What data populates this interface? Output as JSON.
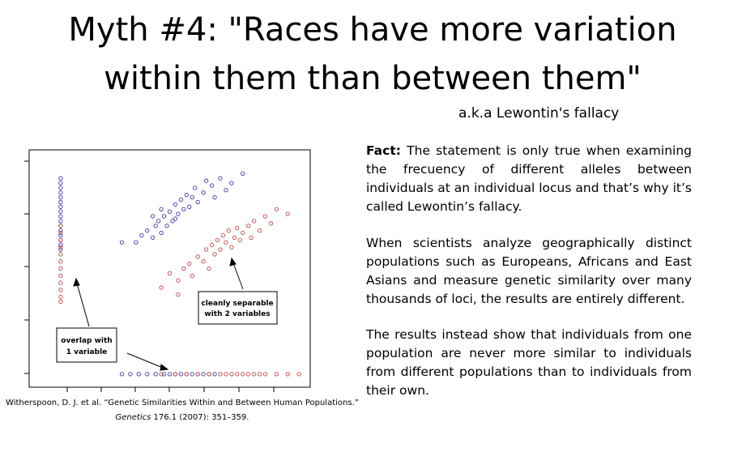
{
  "header": {
    "title_line1": "Myth #4: \"Races have more variation",
    "title_line2": "within them than between them\"",
    "subtitle": "a.k.a Lewontin's fallacy"
  },
  "chart_data": {
    "type": "scatter",
    "xlim": [
      0,
      100
    ],
    "ylim": [
      0,
      100
    ],
    "annotations": [
      {
        "line1": "overlap with",
        "line2": "1 variable"
      },
      {
        "line1": "cleanly separable",
        "line2": "with 2 variables"
      }
    ],
    "series": [
      {
        "color": "#3b3b9e",
        "x": [
          33,
          38,
          40,
          42,
          44,
          45,
          46,
          47,
          48,
          49,
          50,
          51,
          52,
          53,
          54,
          55,
          56,
          57,
          58,
          59,
          60,
          62,
          63,
          65,
          66,
          68,
          70,
          72,
          76,
          47,
          52,
          44
        ],
        "values": [
          61,
          61,
          64,
          66,
          63,
          68,
          70,
          65,
          72,
          68,
          74,
          70,
          77,
          73,
          79,
          75,
          81,
          76,
          80,
          84,
          78,
          82,
          87,
          85,
          80,
          88,
          83,
          86,
          90,
          75,
          71,
          72
        ]
      },
      {
        "color": "#c04848",
        "x": [
          47,
          50,
          53,
          55,
          57,
          58,
          60,
          62,
          63,
          64,
          65,
          66,
          67,
          68,
          69,
          70,
          71,
          72,
          73,
          74,
          75,
          76,
          78,
          79,
          80,
          82,
          84,
          86,
          88,
          92,
          53
        ],
        "values": [
          42,
          48,
          45,
          50,
          52,
          47,
          55,
          53,
          58,
          50,
          60,
          56,
          62,
          58,
          64,
          61,
          66,
          59,
          63,
          67,
          62,
          65,
          68,
          63,
          70,
          66,
          72,
          69,
          75,
          73,
          39
        ]
      },
      {
        "color": "#3b3b9e",
        "x": [
          11.2,
          11.2,
          11.2,
          11.2,
          11.2,
          11.2,
          11.2,
          11.2,
          11.2,
          11.2,
          11.2,
          11.2,
          11.2,
          11.2,
          11.2,
          11.2
        ],
        "values": [
          88,
          86,
          84,
          82,
          80,
          78,
          76,
          74,
          72,
          70,
          68,
          66,
          64,
          62,
          60,
          58
        ]
      },
      {
        "color": "#c04848",
        "x": [
          11.2,
          11.2,
          11.2,
          11.2,
          11.2,
          11.2,
          11.2,
          11.2,
          11.2,
          11.2,
          11.2,
          11.2
        ],
        "values": [
          68,
          65,
          62,
          59,
          56,
          53,
          50,
          47,
          44,
          41,
          38,
          36
        ]
      },
      {
        "color": "#3b3b9e",
        "x": [
          33,
          36,
          39,
          42,
          45,
          48,
          50,
          52,
          54,
          56,
          58,
          60,
          62,
          64,
          66
        ],
        "values": [
          5.5,
          5.5,
          5.5,
          5.5,
          5.5,
          5.5,
          5.5,
          5.5,
          5.5,
          5.5,
          5.5,
          5.5,
          5.5,
          5.5,
          5.5
        ]
      },
      {
        "color": "#c04848",
        "x": [
          47,
          52,
          56,
          60,
          64,
          68,
          70,
          72,
          74,
          76,
          78,
          80,
          82,
          84,
          88,
          92,
          96
        ],
        "values": [
          5.5,
          5.5,
          5.5,
          5.5,
          5.5,
          5.5,
          5.5,
          5.5,
          5.5,
          5.5,
          5.5,
          5.5,
          5.5,
          5.5,
          5.5,
          5.5,
          5.5
        ]
      }
    ]
  },
  "citation": {
    "line1": "Witherspoon, D. J. et al. “Genetic Similarities Within and Between Human Populations.”",
    "journal": "Genetics",
    "rest": " 176.1 (2007): 351–359."
  },
  "text": {
    "fact_label": "Fact:",
    "fact": " The statement is only true when examining the frecuency of different alleles between individuals at an individual locus and that’s why it’s called Lewontin’s fallacy.",
    "paragraph2": "When scientists analyze geographically distinct populations such as Europeans, Africans and East Asians and measure genetic similarity over many thousands of loci, the results are entirely different.",
    "paragraph3": "The results instead show that individuals from one population are never more similar to individuals from different populations than to individuals from their own."
  }
}
